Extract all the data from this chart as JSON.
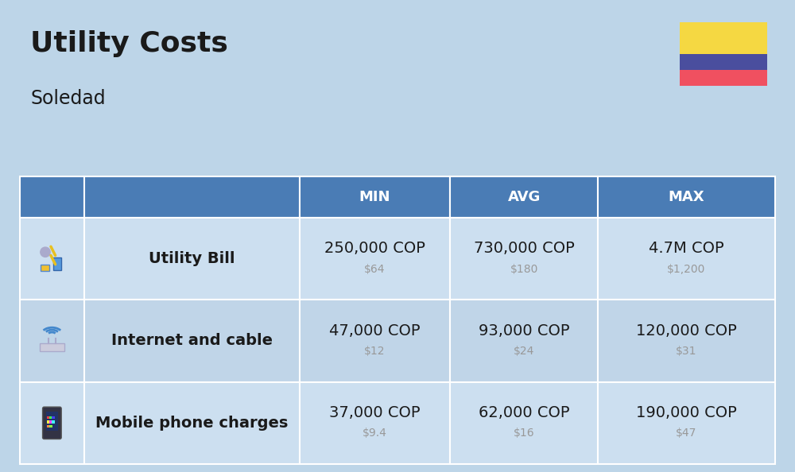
{
  "title": "Utility Costs",
  "subtitle": "Soledad",
  "background_color": "#bdd5e8",
  "header_bg_color": "#4a7cb5",
  "header_text_color": "#ffffff",
  "row_bg_color_odd": "#ccdff0",
  "row_bg_color_even": "#c0d5e8",
  "table_border_color": "#ffffff",
  "columns": [
    "",
    "",
    "MIN",
    "AVG",
    "MAX"
  ],
  "rows": [
    {
      "label": "Utility Bill",
      "min_cop": "250,000 COP",
      "min_usd": "$64",
      "avg_cop": "730,000 COP",
      "avg_usd": "$180",
      "max_cop": "4.7M COP",
      "max_usd": "$1,200"
    },
    {
      "label": "Internet and cable",
      "min_cop": "47,000 COP",
      "min_usd": "$12",
      "avg_cop": "93,000 COP",
      "avg_usd": "$24",
      "max_cop": "120,000 COP",
      "max_usd": "$31"
    },
    {
      "label": "Mobile phone charges",
      "min_cop": "37,000 COP",
      "min_usd": "$9.4",
      "avg_cop": "62,000 COP",
      "avg_usd": "$16",
      "max_cop": "190,000 COP",
      "max_usd": "$47"
    }
  ],
  "flag_yellow": "#f5d842",
  "flag_blue": "#4a4e9e",
  "flag_red": "#f05060",
  "title_fontsize": 26,
  "subtitle_fontsize": 17,
  "header_fontsize": 13,
  "cell_fontsize_large": 14,
  "cell_fontsize_small": 10,
  "label_fontsize": 14,
  "text_color": "#1a1a1a",
  "usd_color": "#999999"
}
